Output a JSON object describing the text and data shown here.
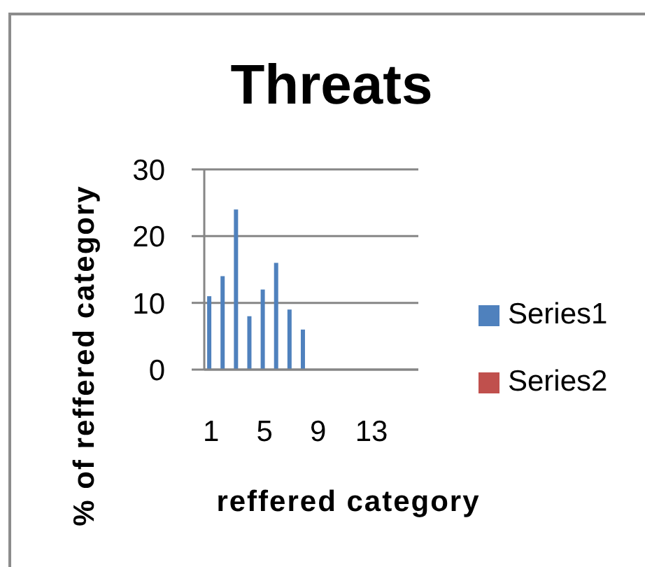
{
  "chart_data": {
    "type": "bar",
    "title": "Threats",
    "xlabel": "reffered category",
    "ylabel": "% of reffered category",
    "categories": [
      "1",
      null,
      null,
      null,
      "5",
      null,
      null,
      null,
      "9",
      null,
      null,
      null,
      "13",
      null,
      null,
      null
    ],
    "series": [
      {
        "name": "Series1",
        "color": "#4f81bd",
        "values": [
          11,
          14,
          24,
          8,
          12,
          16,
          9,
          6,
          null,
          null,
          null,
          null,
          null,
          null,
          null,
          null
        ]
      },
      {
        "name": "Series2",
        "color": "#c0504d",
        "values": [
          null,
          null,
          null,
          null,
          null,
          null,
          null,
          null,
          null,
          null,
          null,
          null,
          null,
          null,
          null,
          null
        ]
      }
    ],
    "ylim": [
      0,
      30
    ],
    "yticks": [
      0,
      10,
      20,
      30
    ],
    "grid": "y",
    "legend": "right"
  }
}
